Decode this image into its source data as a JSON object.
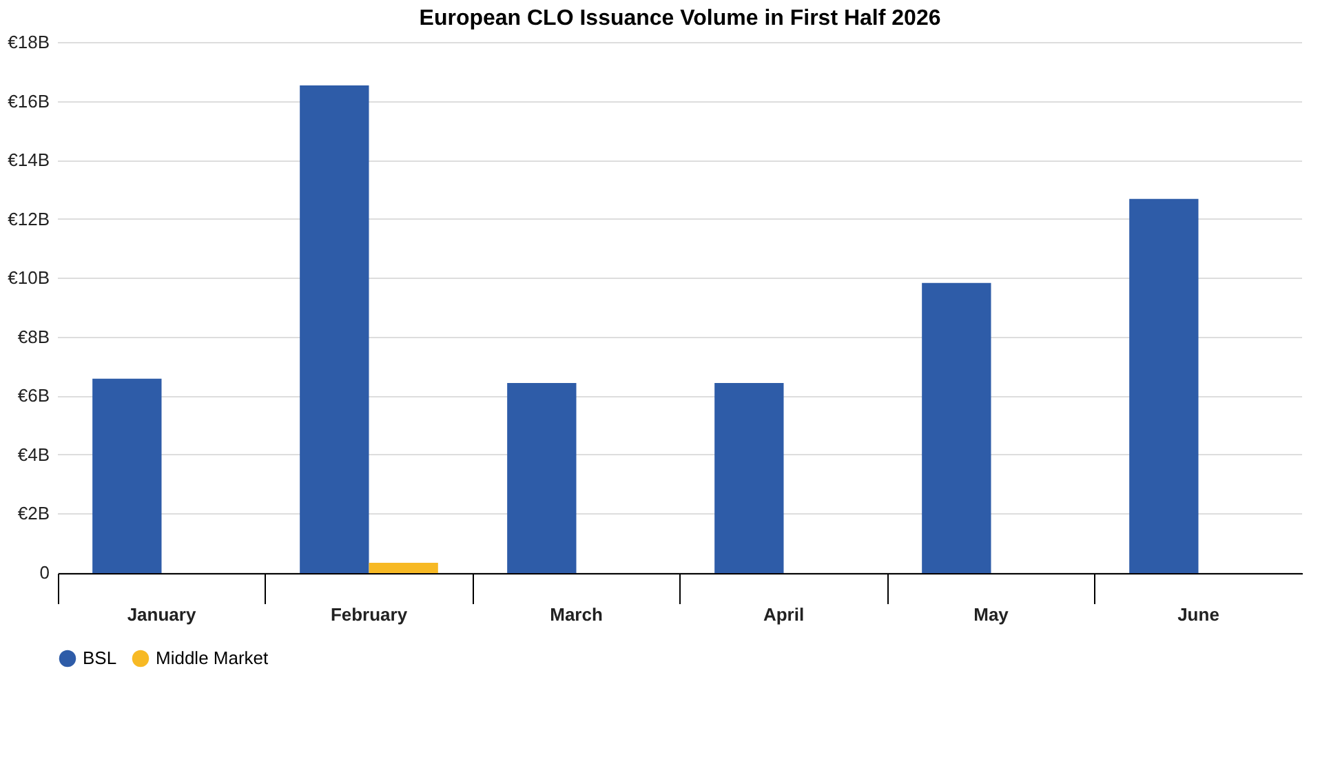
{
  "chart_data": {
    "type": "bar",
    "title": "European CLO Issuance Volume in First Half 2026",
    "categories": [
      "January",
      "February",
      "March",
      "April",
      "May",
      "June"
    ],
    "series": [
      {
        "name": "BSL",
        "color": "#2e5ca8",
        "values": [
          6.6,
          16.55,
          6.45,
          6.45,
          9.85,
          12.7
        ]
      },
      {
        "name": "Middle Market",
        "color": "#f7b924",
        "values": [
          null,
          0.35,
          null,
          null,
          null,
          null
        ]
      }
    ],
    "ylim": [
      0,
      18
    ],
    "yticks": [
      0,
      {
        "value": 2,
        "label": "€2B"
      },
      {
        "value": 4,
        "label": "€4B"
      },
      {
        "value": 6,
        "label": "€6B"
      },
      {
        "value": 8,
        "label": "€8B"
      },
      {
        "value": 10,
        "label": "€10B"
      },
      {
        "value": 12,
        "label": "€12B"
      },
      {
        "value": 14,
        "label": "€14B"
      },
      {
        "value": 16,
        "label": "€16B"
      },
      {
        "value": 18,
        "label": "€18B"
      }
    ],
    "grid": "y",
    "legend": "bottom"
  }
}
